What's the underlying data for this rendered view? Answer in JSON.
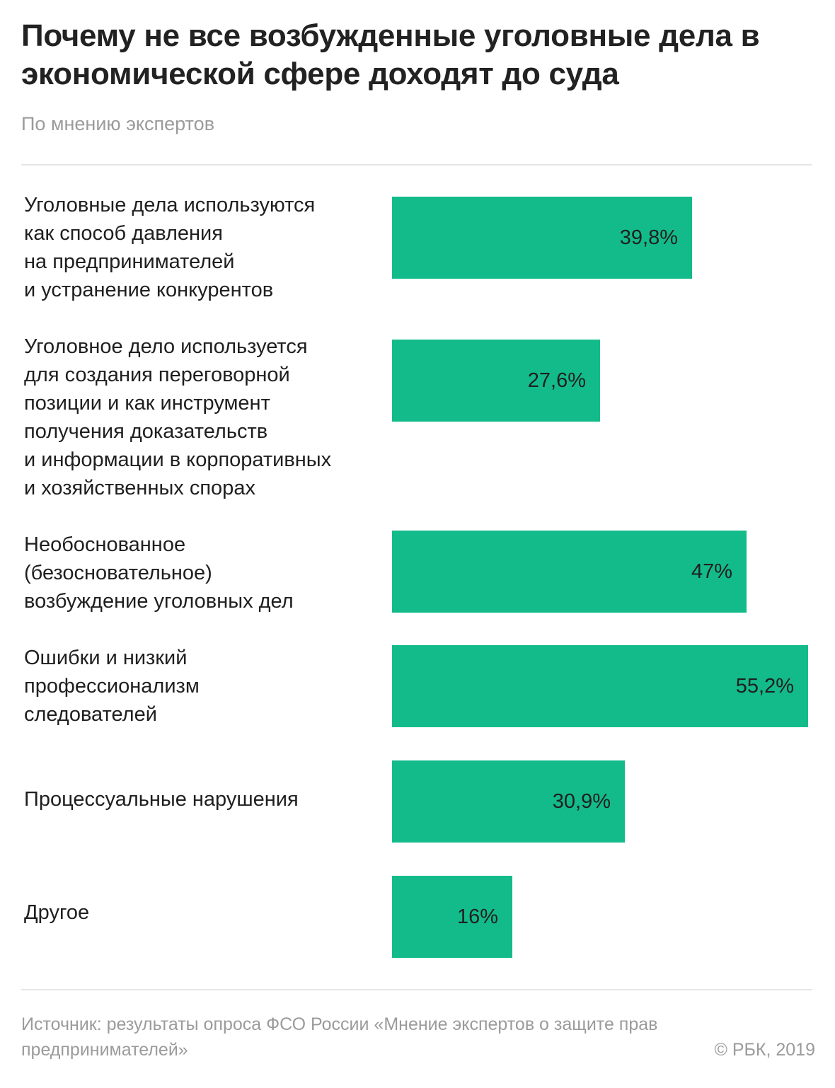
{
  "title": "Почему не все возбужденные уголовные дела в экономической сфере доходят до суда",
  "subtitle": "По мнению экспертов",
  "bar_color": "#13bb8a",
  "chart_data": {
    "type": "bar",
    "orientation": "horizontal",
    "categories": [
      "Уголовные дела используются как способ давления на предпринимателей и устранение конкурентов",
      "Уголовное дело используется для создания переговорной позиции и как инструмент получения доказательств и информации в корпоративных и хозяйственных спорах",
      "Необоснованное (безосновательное) возбуждение уголовных дел",
      "Ошибки и низкий профессионализм следователей",
      "Процессуальные нарушения",
      "Другое"
    ],
    "values": [
      39.8,
      27.6,
      47,
      55.2,
      30.9,
      16
    ],
    "value_labels": [
      "39,8%",
      "27,6%",
      "47%",
      "55,2%",
      "30,9%",
      "16%"
    ],
    "label_lines": [
      [
        "Уголовные дела используются",
        "как способ давления",
        "на предпринимателей",
        "и устранение конкурентов"
      ],
      [
        "Уголовное дело используется",
        "для создания переговорной",
        "позиции и как инструмент",
        "получения доказательств",
        "и информации в корпоративных",
        "и хозяйственных спорах"
      ],
      [
        "Необоснованное",
        "(безосновательное)",
        "возбуждение уголовных дел"
      ],
      [
        "Ошибки и низкий",
        "профессионализм",
        "следователей"
      ],
      [
        "Процессуальные нарушения"
      ],
      [
        "Другое"
      ]
    ],
    "xlim": [
      0,
      55.2
    ],
    "title": "Почему не все возбужденные уголовные дела в экономической сфере доходят до суда",
    "xlabel": "",
    "ylabel": "",
    "grid": false,
    "legend": "none"
  },
  "footer": {
    "source": "Источник: результаты опроса ФСО России «Мнение экспертов о защите прав предпринимателей»",
    "copyright": "© РБК, 2019"
  }
}
